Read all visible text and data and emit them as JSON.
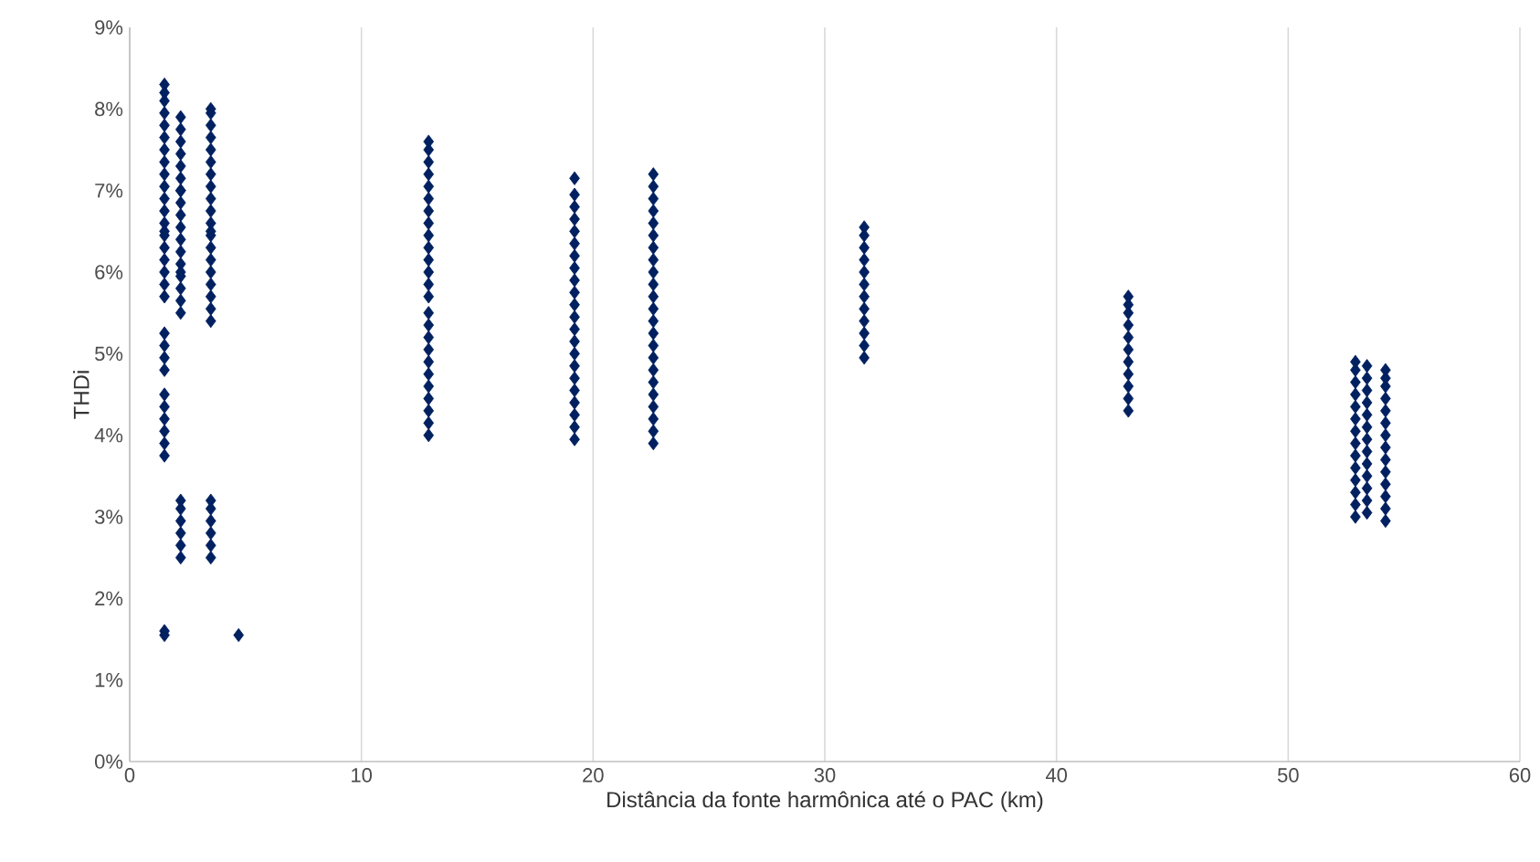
{
  "chart_data": {
    "type": "scatter",
    "xlabel": "Distância da fonte harmônica até o PAC (km)",
    "ylabel": "THDi",
    "xlim": [
      0,
      60
    ],
    "xticks": [
      0,
      10,
      20,
      30,
      40,
      50,
      60
    ],
    "ylim": [
      0,
      9
    ],
    "yticks": [
      {
        "value": 0,
        "label": "0%"
      },
      {
        "value": 1,
        "label": "1%"
      },
      {
        "value": 2,
        "label": "2%"
      },
      {
        "value": 3,
        "label": "3%"
      },
      {
        "value": 4,
        "label": "4%"
      },
      {
        "value": 5,
        "label": "5%"
      },
      {
        "value": 6,
        "label": "6%"
      },
      {
        "value": 7,
        "label": "7%"
      },
      {
        "value": 8,
        "label": "8%"
      },
      {
        "value": 9,
        "label": "9%"
      }
    ],
    "grid": "x",
    "marker": "diamond",
    "series": [
      {
        "color": "#002060",
        "x": [
          1.5,
          1.5,
          1.5,
          1.5,
          1.5,
          1.5,
          1.5,
          1.5,
          1.5,
          1.5,
          1.5,
          1.5,
          1.5,
          1.5,
          1.5,
          1.5,
          1.5,
          1.5,
          1.5,
          1.5,
          1.5,
          1.5,
          1.5,
          1.5,
          1.5,
          1.5,
          1.5,
          1.5,
          1.5,
          1.5,
          1.5,
          1.5,
          2.2,
          2.2,
          2.2,
          2.2,
          2.2,
          2.2,
          2.2,
          2.2,
          2.2,
          2.2,
          2.2,
          2.2,
          2.2,
          2.2,
          2.2,
          2.2,
          2.2,
          2.2,
          2.2,
          2.2,
          2.2,
          2.2,
          2.2,
          2.2,
          2.2,
          3.5,
          3.5,
          3.5,
          3.5,
          3.5,
          3.5,
          3.5,
          3.5,
          3.5,
          3.5,
          3.5,
          3.5,
          3.5,
          3.5,
          3.5,
          3.5,
          3.5,
          3.5,
          3.5,
          3.5,
          3.5,
          3.5,
          3.5,
          3.5,
          3.5,
          3.5,
          4.7,
          12.9,
          12.9,
          12.9,
          12.9,
          12.9,
          12.9,
          12.9,
          12.9,
          12.9,
          12.9,
          12.9,
          12.9,
          12.9,
          12.9,
          12.9,
          12.9,
          12.9,
          12.9,
          12.9,
          12.9,
          12.9,
          12.9,
          12.9,
          12.9,
          12.9,
          19.2,
          19.2,
          19.2,
          19.2,
          19.2,
          19.2,
          19.2,
          19.2,
          19.2,
          19.2,
          19.2,
          19.2,
          19.2,
          19.2,
          19.2,
          19.2,
          19.2,
          19.2,
          19.2,
          19.2,
          19.2,
          19.2,
          22.6,
          22.6,
          22.6,
          22.6,
          22.6,
          22.6,
          22.6,
          22.6,
          22.6,
          22.6,
          22.6,
          22.6,
          22.6,
          22.6,
          22.6,
          22.6,
          22.6,
          22.6,
          22.6,
          22.6,
          22.6,
          22.6,
          22.6,
          31.7,
          31.7,
          31.7,
          31.7,
          31.7,
          31.7,
          31.7,
          31.7,
          31.7,
          31.7,
          31.7,
          31.7,
          43.1,
          43.1,
          43.1,
          43.1,
          43.1,
          43.1,
          43.1,
          43.1,
          43.1,
          43.1,
          43.1,
          52.9,
          52.9,
          52.9,
          52.9,
          52.9,
          52.9,
          52.9,
          52.9,
          52.9,
          52.9,
          52.9,
          52.9,
          52.9,
          52.9,
          53.4,
          53.4,
          53.4,
          53.4,
          53.4,
          53.4,
          53.4,
          53.4,
          53.4,
          53.4,
          53.4,
          53.4,
          53.4,
          54.2,
          54.2,
          54.2,
          54.2,
          54.2,
          54.2,
          54.2,
          54.2,
          54.2,
          54.2,
          54.2,
          54.2,
          54.2,
          54.2
        ],
        "values": [
          1.55,
          1.6,
          3.75,
          3.9,
          4.05,
          4.2,
          4.35,
          4.5,
          4.8,
          4.95,
          5.1,
          5.25,
          5.7,
          5.85,
          6.0,
          6.15,
          6.3,
          6.45,
          6.6,
          6.75,
          6.9,
          7.05,
          7.2,
          7.35,
          7.5,
          7.65,
          7.8,
          7.95,
          8.1,
          8.2,
          8.3,
          6.5,
          2.5,
          2.65,
          2.8,
          2.95,
          3.1,
          3.2,
          5.5,
          5.65,
          5.8,
          5.95,
          6.1,
          6.25,
          6.4,
          6.55,
          6.7,
          6.85,
          7.0,
          7.15,
          7.3,
          7.45,
          7.6,
          7.75,
          7.9,
          6.0,
          7.0,
          2.5,
          2.65,
          2.8,
          2.95,
          3.1,
          3.2,
          5.4,
          5.55,
          5.7,
          5.85,
          6.0,
          6.15,
          6.3,
          6.45,
          6.6,
          6.75,
          6.9,
          7.05,
          7.2,
          7.35,
          7.5,
          7.65,
          7.8,
          7.95,
          8.0,
          6.5,
          1.55,
          4.0,
          4.15,
          4.3,
          4.45,
          4.6,
          4.75,
          4.9,
          5.05,
          5.2,
          5.35,
          5.7,
          5.85,
          6.0,
          6.15,
          6.3,
          6.45,
          6.6,
          6.75,
          6.9,
          7.05,
          7.2,
          7.35,
          7.5,
          7.6,
          5.5,
          3.95,
          4.1,
          4.25,
          4.4,
          4.55,
          4.7,
          4.85,
          5.0,
          5.15,
          5.3,
          5.45,
          5.6,
          5.75,
          5.9,
          6.05,
          6.2,
          6.35,
          6.5,
          6.65,
          6.8,
          6.95,
          7.15,
          3.9,
          4.05,
          4.2,
          4.35,
          4.5,
          4.65,
          4.8,
          4.95,
          5.1,
          5.25,
          5.4,
          5.55,
          5.7,
          5.85,
          6.0,
          6.15,
          6.3,
          6.45,
          6.6,
          6.75,
          6.9,
          7.05,
          7.2,
          4.95,
          5.1,
          5.25,
          5.4,
          5.55,
          5.7,
          5.85,
          6.0,
          6.15,
          6.3,
          6.45,
          6.55,
          4.3,
          4.45,
          4.6,
          4.75,
          4.9,
          5.05,
          5.2,
          5.35,
          5.5,
          5.6,
          5.7,
          3.0,
          3.15,
          3.3,
          3.45,
          3.6,
          3.75,
          3.9,
          4.05,
          4.2,
          4.35,
          4.5,
          4.65,
          4.8,
          4.9,
          3.05,
          3.2,
          3.35,
          3.5,
          3.65,
          3.8,
          3.95,
          4.1,
          4.25,
          4.4,
          4.55,
          4.7,
          4.85,
          2.95,
          3.1,
          3.25,
          3.4,
          3.55,
          3.7,
          3.85,
          4.0,
          4.15,
          4.3,
          4.45,
          4.6,
          4.7,
          4.8
        ]
      }
    ]
  }
}
